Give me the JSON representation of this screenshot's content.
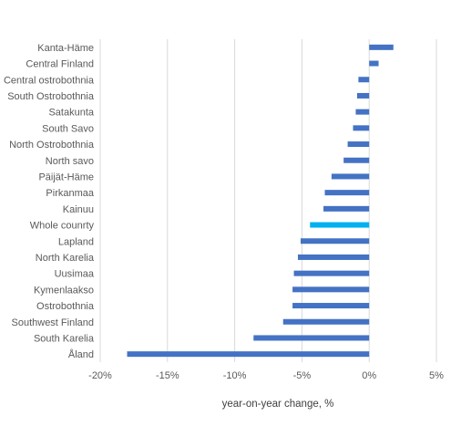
{
  "chart_data": {
    "type": "bar",
    "orientation": "horizontal",
    "xlabel": "year-on-year change, %",
    "xlim": [
      -20,
      5
    ],
    "xticks": [
      -20,
      -15,
      -10,
      -5,
      0,
      5
    ],
    "xtick_labels": [
      "-20%",
      "-15%",
      "-10%",
      "-5%",
      "0%",
      "5%"
    ],
    "grid": "vertical",
    "colors": {
      "default": "#4472C4",
      "highlight": "#00B0F0"
    },
    "categories": [
      "Kanta-Häme",
      "Central Finland",
      "Central ostrobothnia",
      "South Ostrobothnia",
      "Satakunta",
      "South Savo",
      "North Ostrobothnia",
      "North savo",
      "Päijät-Häme",
      "Pirkanmaa",
      "Kainuu",
      "Whole counrty",
      "Lapland",
      "North Karelia",
      "Uusimaa",
      "Kymenlaakso",
      "Ostrobothnia",
      "Southwest Finland",
      "South Karelia",
      "Åland"
    ],
    "values": [
      1.8,
      0.7,
      -0.8,
      -0.9,
      -1.0,
      -1.2,
      -1.6,
      -1.9,
      -2.8,
      -3.3,
      -3.4,
      -4.4,
      -5.1,
      -5.3,
      -5.6,
      -5.7,
      -5.7,
      -6.4,
      -8.6,
      -18.0
    ],
    "highlight": "Whole counrty"
  }
}
